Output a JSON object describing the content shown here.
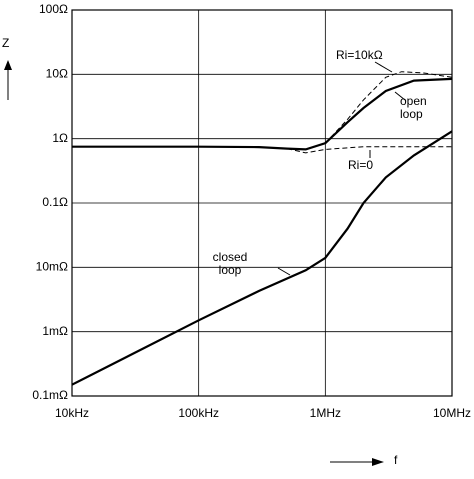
{
  "chart_data": {
    "type": "line",
    "xlabel": "f",
    "ylabel": "Z",
    "log_x": true,
    "log_y": true,
    "grid": true,
    "xlim": [
      10000,
      10000000
    ],
    "xticks": [
      {
        "value": 10000,
        "label": "10kHz"
      },
      {
        "value": 100000,
        "label": "100kHz"
      },
      {
        "value": 1000000,
        "label": "1MHz"
      },
      {
        "value": 10000000,
        "label": "10MHz"
      }
    ],
    "ylim": [
      0.0001,
      100
    ],
    "yticks": [
      {
        "value": 0.0001,
        "label": "0.1mΩ"
      },
      {
        "value": 0.001,
        "label": "1mΩ"
      },
      {
        "value": 0.01,
        "label": "10mΩ"
      },
      {
        "value": 0.1,
        "label": "0.1Ω"
      },
      {
        "value": 1,
        "label": "1Ω"
      },
      {
        "value": 10,
        "label": "10Ω"
      },
      {
        "value": 100,
        "label": "100Ω"
      }
    ],
    "series": [
      {
        "name": "open loop",
        "color": "#000000",
        "style": "solid",
        "x": [
          10000,
          100000,
          300000,
          500000,
          700000,
          1000000,
          1500000,
          2000000,
          3000000,
          5000000,
          10000000
        ],
        "values": [
          0.75,
          0.75,
          0.74,
          0.7,
          0.68,
          0.85,
          1.8,
          3,
          5.5,
          8,
          8.5
        ]
      },
      {
        "name": "closed loop",
        "color": "#000000",
        "style": "solid",
        "x": [
          10000,
          30000,
          100000,
          300000,
          700000,
          1000000,
          1500000,
          2000000,
          3000000,
          5000000,
          10000000
        ],
        "values": [
          0.00015,
          0.00045,
          0.0015,
          0.0043,
          0.009,
          0.014,
          0.04,
          0.1,
          0.25,
          0.55,
          1.3
        ]
      },
      {
        "name": "Ri=10kΩ",
        "color": "#000000",
        "style": "dashed",
        "x": [
          1000000,
          1500000,
          2000000,
          3000000,
          4000000,
          6000000,
          10000000
        ],
        "values": [
          0.85,
          2,
          4,
          9,
          11,
          10.5,
          9
        ]
      },
      {
        "name": "Ri=0",
        "color": "#000000",
        "style": "dashed",
        "x": [
          500000,
          700000,
          1000000,
          2000000,
          10000000
        ],
        "values": [
          0.7,
          0.6,
          0.68,
          0.75,
          0.75
        ]
      }
    ]
  }
}
